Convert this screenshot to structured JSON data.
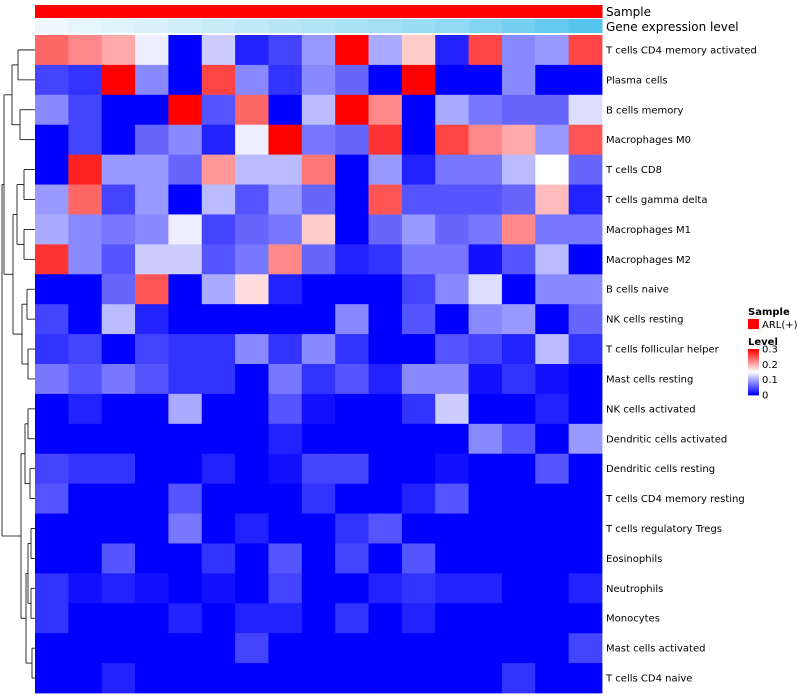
{
  "chart_data": {
    "type": "heatmap",
    "title": "",
    "annotation_tracks": [
      {
        "name": "Sample",
        "color": "#ff0000"
      },
      {
        "name": "Gene expression level",
        "low_color": "#eef8fc",
        "high_color": "#55c5ee"
      }
    ],
    "rows": [
      "T cells CD4 memory activated",
      "Plasma cells",
      "B cells memory",
      "Macrophages M0",
      "T cells CD8",
      "T cells gamma delta",
      "Macrophages M1",
      "Macrophages M2",
      "B cells naive",
      "NK cells resting",
      "T cells follicular helper",
      "Mast cells resting",
      "NK cells activated",
      "Dendritic cells activated",
      "Dendritic cells resting",
      "T cells CD4 memory resting",
      "T cells regulatory  Tregs",
      "Eosinophils",
      "Neutrophils",
      "Monocytes",
      "Mast cells activated",
      "T cells CD4 naive"
    ],
    "n_samples": 17,
    "values": [
      [
        0.24,
        0.22,
        0.2,
        0.14,
        0.0,
        0.12,
        0.02,
        0.04,
        0.09,
        0.3,
        0.1,
        0.18,
        0.02,
        0.26,
        0.08,
        0.09,
        0.26
      ],
      [
        0.04,
        0.03,
        0.3,
        0.08,
        0.0,
        0.26,
        0.08,
        0.03,
        0.08,
        0.06,
        0.0,
        0.3,
        0.0,
        0.0,
        0.08,
        0.0,
        0.0
      ],
      [
        0.08,
        0.04,
        0.0,
        0.0,
        0.3,
        0.05,
        0.24,
        0.0,
        0.11,
        0.3,
        0.22,
        0.0,
        0.1,
        0.07,
        0.06,
        0.06,
        0.13
      ],
      [
        0.0,
        0.04,
        0.0,
        0.06,
        0.08,
        0.02,
        0.14,
        0.3,
        0.07,
        0.06,
        0.27,
        0.0,
        0.26,
        0.22,
        0.2,
        0.09,
        0.25
      ],
      [
        0.0,
        0.28,
        0.09,
        0.09,
        0.06,
        0.21,
        0.11,
        0.11,
        0.23,
        0.0,
        0.09,
        0.02,
        0.07,
        0.07,
        0.11,
        0.15,
        0.06
      ],
      [
        0.09,
        0.24,
        0.04,
        0.09,
        0.0,
        0.11,
        0.05,
        0.09,
        0.06,
        0.0,
        0.25,
        0.05,
        0.05,
        0.05,
        0.06,
        0.19,
        0.02
      ],
      [
        0.1,
        0.08,
        0.07,
        0.08,
        0.14,
        0.04,
        0.06,
        0.07,
        0.18,
        0.0,
        0.06,
        0.09,
        0.06,
        0.07,
        0.22,
        0.07,
        0.07
      ],
      [
        0.27,
        0.08,
        0.05,
        0.12,
        0.12,
        0.05,
        0.07,
        0.22,
        0.06,
        0.02,
        0.03,
        0.07,
        0.07,
        0.01,
        0.05,
        0.11,
        0.0
      ],
      [
        0.0,
        0.0,
        0.06,
        0.25,
        0.0,
        0.1,
        0.17,
        0.02,
        0.0,
        0.0,
        0.0,
        0.04,
        0.08,
        0.13,
        0.0,
        0.08,
        0.08
      ],
      [
        0.04,
        0.0,
        0.11,
        0.02,
        0.0,
        0.0,
        0.0,
        0.0,
        0.0,
        0.08,
        0.0,
        0.05,
        0.0,
        0.08,
        0.09,
        0.0,
        0.06
      ],
      [
        0.03,
        0.04,
        0.0,
        0.04,
        0.03,
        0.03,
        0.08,
        0.03,
        0.08,
        0.03,
        0.0,
        0.0,
        0.05,
        0.04,
        0.02,
        0.11,
        0.03
      ],
      [
        0.07,
        0.05,
        0.07,
        0.05,
        0.03,
        0.03,
        0.0,
        0.07,
        0.03,
        0.05,
        0.02,
        0.08,
        0.08,
        0.01,
        0.03,
        0.01,
        0.0
      ],
      [
        0.0,
        0.02,
        0.0,
        0.0,
        0.1,
        0.0,
        0.0,
        0.05,
        0.01,
        0.0,
        0.0,
        0.03,
        0.12,
        0.0,
        0.0,
        0.02,
        0.0
      ],
      [
        0.0,
        0.0,
        0.0,
        0.0,
        0.0,
        0.0,
        0.0,
        0.02,
        0.0,
        0.0,
        0.0,
        0.0,
        0.0,
        0.08,
        0.05,
        0.0,
        0.09
      ],
      [
        0.04,
        0.03,
        0.03,
        0.0,
        0.0,
        0.02,
        0.0,
        0.01,
        0.04,
        0.04,
        0.0,
        0.0,
        0.01,
        0.0,
        0.0,
        0.05,
        0.0
      ],
      [
        0.05,
        0.0,
        0.0,
        0.0,
        0.05,
        0.0,
        0.0,
        0.0,
        0.03,
        0.0,
        0.0,
        0.02,
        0.05,
        0.0,
        0.0,
        0.0,
        0.0
      ],
      [
        0.0,
        0.0,
        0.0,
        0.0,
        0.07,
        0.0,
        0.02,
        0.0,
        0.0,
        0.03,
        0.05,
        0.0,
        0.0,
        0.0,
        0.0,
        0.0,
        0.0
      ],
      [
        0.0,
        0.0,
        0.05,
        0.0,
        0.0,
        0.03,
        0.0,
        0.05,
        0.0,
        0.04,
        0.0,
        0.05,
        0.0,
        0.0,
        0.0,
        0.0,
        0.0
      ],
      [
        0.03,
        0.01,
        0.02,
        0.01,
        0.0,
        0.01,
        0.0,
        0.04,
        0.0,
        0.0,
        0.02,
        0.03,
        0.02,
        0.02,
        0.0,
        0.0,
        0.02
      ],
      [
        0.03,
        0.0,
        0.0,
        0.0,
        0.02,
        0.0,
        0.02,
        0.02,
        0.0,
        0.03,
        0.0,
        0.02,
        0.0,
        0.0,
        0.0,
        0.0,
        0.0
      ],
      [
        0.0,
        0.0,
        0.0,
        0.0,
        0.0,
        0.0,
        0.04,
        0.0,
        0.0,
        0.0,
        0.0,
        0.0,
        0.0,
        0.0,
        0.0,
        0.0,
        0.04
      ],
      [
        0.0,
        0.0,
        0.02,
        0.0,
        0.0,
        0.0,
        0.0,
        0.0,
        0.0,
        0.0,
        0.0,
        0.0,
        0.0,
        0.0,
        0.03,
        0.0,
        0.0
      ]
    ],
    "gene_expression_level": [
      0.0,
      0.05,
      0.1,
      0.15,
      0.2,
      0.25,
      0.3,
      0.35,
      0.4,
      0.45,
      0.5,
      0.55,
      0.6,
      0.7,
      0.8,
      0.9,
      1.0
    ],
    "color_scale": {
      "min": 0,
      "mid": 0.15,
      "max": 0.3,
      "low": "#0000ff",
      "mid_color": "#ffffff",
      "high": "#ff0000"
    },
    "legend": {
      "sample_title": "Sample",
      "sample_entry": "ARL(+)",
      "sample_color": "#ff0000",
      "level_title": "Level",
      "ticks": [
        {
          "value": 0.3,
          "label": "0.3"
        },
        {
          "value": 0.2,
          "label": "0.2"
        },
        {
          "value": 0.1,
          "label": "0.1"
        },
        {
          "value": 0.0,
          "label": "0"
        }
      ],
      "placement": "right"
    },
    "dendrogram": "rows"
  }
}
